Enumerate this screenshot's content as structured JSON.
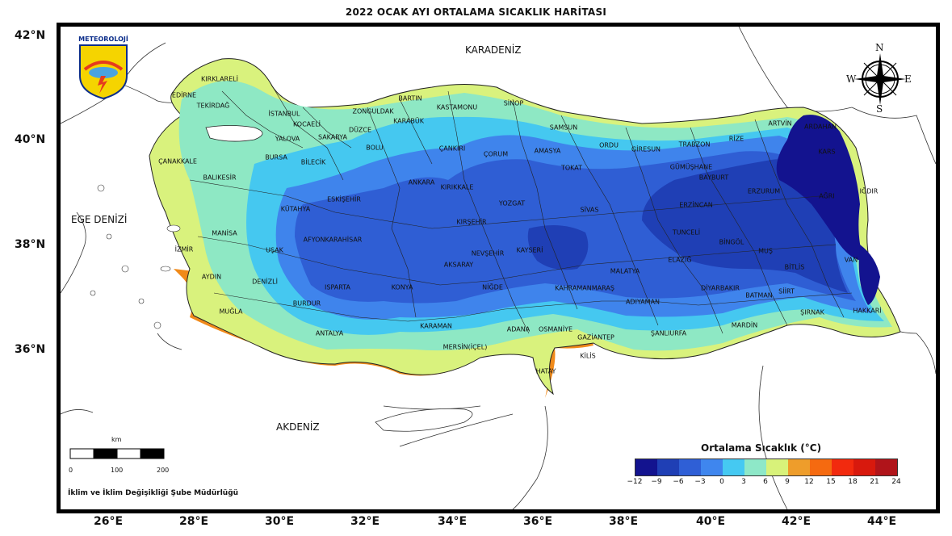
{
  "title": "2022 OCAK AYI ORTALAMA SICAKLIK HARİTASI",
  "latitude_labels": [
    "42°N",
    "40°N",
    "38°N",
    "36°N"
  ],
  "longitude_labels": [
    "26°E",
    "28°E",
    "30°E",
    "32°E",
    "34°E",
    "36°E",
    "38°E",
    "40°E",
    "42°E",
    "44°E"
  ],
  "seas": {
    "north": "KARADENİZ",
    "west": "EGE DENİZİ",
    "south": "AKDENİZ"
  },
  "logo_text": "METEOROLOJİ",
  "compass": {
    "n": "N",
    "s": "S",
    "e": "E",
    "w": "W"
  },
  "scale_bar": {
    "unit": "km",
    "ticks": [
      "0",
      "100",
      "200"
    ]
  },
  "legend": {
    "title": "Ortalama Sıcaklık (°C)",
    "ticks": [
      "−12",
      "−9",
      "−6",
      "−3",
      "0",
      "3",
      "6",
      "9",
      "12",
      "15",
      "18",
      "21",
      "24"
    ],
    "colors": [
      "#13138f",
      "#1f3fb5",
      "#2f5fd6",
      "#3f86ee",
      "#45c9f2",
      "#8ee8c8",
      "#d8f27a",
      "#ee9d2b",
      "#f56a10",
      "#f22a0e",
      "#d8190d",
      "#b0141a"
    ]
  },
  "credit": "İklim ve İklim Değişikliği Şube Müdürlüğü",
  "provinces": [
    "KIRKLARELİ",
    "EDİRNE",
    "TEKİRDAĞ",
    "İSTANBUL",
    "KOCAELİ",
    "YALOVA",
    "SAKARYA",
    "DÜZCE",
    "ZONGULDAK",
    "BARTIN",
    "KARABÜK",
    "KASTAMONU",
    "SİNOP",
    "SAMSUN",
    "ORDU",
    "GİRESUN",
    "TRABZON",
    "RİZE",
    "ARTVİN",
    "ARDAHAN",
    "KARS",
    "IĞDIR",
    "AĞRI",
    "ERZURUM",
    "BAYBURT",
    "GÜMÜŞHANE",
    "ERZİNCAN",
    "TUNCELİ",
    "BİNGÖL",
    "MUŞ",
    "BİTLİS",
    "VAN",
    "HAKKARİ",
    "ŞIRNAK",
    "SİİRT",
    "BATMAN",
    "MARDİN",
    "DİYARBAKIR",
    "ELAZIĞ",
    "MALATYA",
    "ADIYAMAN",
    "ŞANLIURFA",
    "GAZİANTEP",
    "KİLİS",
    "HATAY",
    "OSMANİYE",
    "ADANA",
    "MERSİN(İÇEL)",
    "KARAMAN",
    "KONYA",
    "NİĞDE",
    "NEVŞEHİR",
    "AKSARAY",
    "KAYSERİ",
    "KAHRAMANMARAŞ",
    "SİVAS",
    "YOZGAT",
    "KIRŞEHİR",
    "KIRIKKALE",
    "ANKARA",
    "ÇANKIRI",
    "ÇORUM",
    "AMASYA",
    "TOKAT",
    "BOLU",
    "BİLECİK",
    "BURSA",
    "ÇANAKKALE",
    "BALIKESİR",
    "ESKİŞEHİR",
    "KÜTAHYA",
    "MANİSA",
    "İZMİR",
    "UŞAK",
    "AFYONKARAHİSAR",
    "AYDIN",
    "DENİZLİ",
    "MUĞLA",
    "BURDUR",
    "ISPARTA",
    "ANTALYA"
  ]
}
